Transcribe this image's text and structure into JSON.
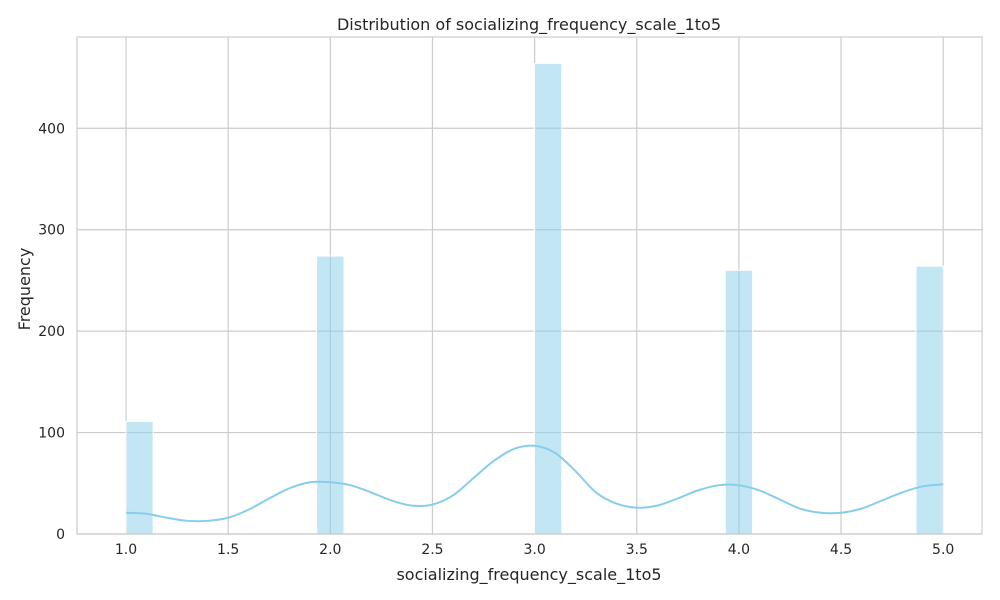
{
  "chart_data": {
    "type": "histogram",
    "title": "Distribution of socializing_frequency_scale_1to5",
    "xlabel": "socializing_frequency_scale_1to5",
    "ylabel": "Frequency",
    "xlim": [
      0.76,
      5.19
    ],
    "ylim": [
      0,
      490
    ],
    "x_ticks": [
      1.0,
      1.5,
      2.0,
      2.5,
      3.0,
      3.5,
      4.0,
      4.5,
      5.0
    ],
    "x_tick_labels": [
      "1.0",
      "1.5",
      "2.0",
      "2.5",
      "3.0",
      "3.5",
      "4.0",
      "4.5",
      "5.0"
    ],
    "y_ticks": [
      0,
      100,
      200,
      300,
      400
    ],
    "y_tick_labels": [
      "0",
      "100",
      "200",
      "300",
      "400"
    ],
    "grid": true,
    "bins": [
      {
        "x0": 1.0,
        "x1": 1.133,
        "count": 111
      },
      {
        "x0": 1.933,
        "x1": 2.067,
        "count": 274
      },
      {
        "x0": 3.0,
        "x1": 3.133,
        "count": 464
      },
      {
        "x0": 3.933,
        "x1": 4.067,
        "count": 260
      },
      {
        "x0": 4.867,
        "x1": 5.0,
        "count": 264
      }
    ],
    "kde": {
      "x": [
        1.0,
        1.1,
        1.2,
        1.3,
        1.4,
        1.5,
        1.6,
        1.7,
        1.8,
        1.9,
        2.0,
        2.1,
        2.2,
        2.3,
        2.4,
        2.5,
        2.6,
        2.7,
        2.8,
        2.9,
        3.0,
        3.1,
        3.2,
        3.3,
        3.4,
        3.5,
        3.6,
        3.7,
        3.8,
        3.9,
        4.0,
        4.1,
        4.2,
        4.3,
        4.4,
        4.5,
        4.6,
        4.7,
        4.8,
        4.9,
        5.0
      ],
      "y": [
        21,
        20,
        16,
        13,
        13,
        16,
        24,
        35,
        45,
        51,
        51,
        48,
        41,
        33,
        28,
        29,
        38,
        55,
        72,
        84,
        87,
        80,
        62,
        41,
        30,
        26,
        28,
        35,
        43,
        48,
        48,
        43,
        34,
        25,
        21,
        21,
        25,
        33,
        41,
        47,
        49
      ]
    },
    "bar_color": "#87ceeb",
    "line_color": "#87ceeb"
  }
}
